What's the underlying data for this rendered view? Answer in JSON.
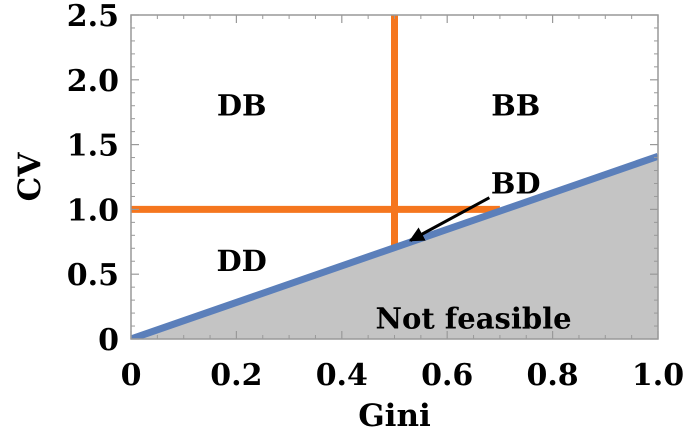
{
  "chart_data": {
    "type": "line",
    "xlabel": "Gini",
    "ylabel": "CV",
    "xlim": [
      0,
      1.0
    ],
    "ylim": [
      0,
      2.5
    ],
    "x_ticks": [
      {
        "value": 0,
        "label": "0"
      },
      {
        "value": 0.2,
        "label": "0.2"
      },
      {
        "value": 0.4,
        "label": "0.4"
      },
      {
        "value": 0.6,
        "label": "0.6"
      },
      {
        "value": 0.8,
        "label": "0.8"
      },
      {
        "value": 1.0,
        "label": "1.0"
      }
    ],
    "y_ticks": [
      {
        "value": 0,
        "label": "0"
      },
      {
        "value": 0.5,
        "label": "0.5"
      },
      {
        "value": 1.0,
        "label": "1.0"
      },
      {
        "value": 1.5,
        "label": "1.5"
      },
      {
        "value": 2.0,
        "label": "2.0"
      },
      {
        "value": 2.5,
        "label": "2.5"
      }
    ],
    "grid": false,
    "boundary_line": {
      "color": "#5b7fba",
      "points": [
        [
          0,
          0
        ],
        [
          1.0,
          1.41
        ]
      ]
    },
    "threshold_lines": {
      "color": "#f5761e",
      "horizontal": {
        "y": 1.0,
        "x_from": 0,
        "x_to": 0.7
      },
      "vertical": {
        "x": 0.5,
        "y_from": 0.71,
        "y_to": 2.5
      }
    },
    "infeasible_fill": "#c4c4c4",
    "regions": [
      {
        "label": "DB",
        "x": 0.21,
        "y": 1.8
      },
      {
        "label": "BB",
        "x": 0.73,
        "y": 1.8
      },
      {
        "label": "BD",
        "x": 0.73,
        "y": 1.2
      },
      {
        "label": "DD",
        "x": 0.21,
        "y": 0.6
      },
      {
        "label": "Not feasible",
        "x": 0.65,
        "y": 0.16
      }
    ],
    "annotation_arrow": {
      "from": [
        0.68,
        1.09
      ],
      "to": [
        0.53,
        0.76
      ],
      "color": "#000000"
    }
  }
}
